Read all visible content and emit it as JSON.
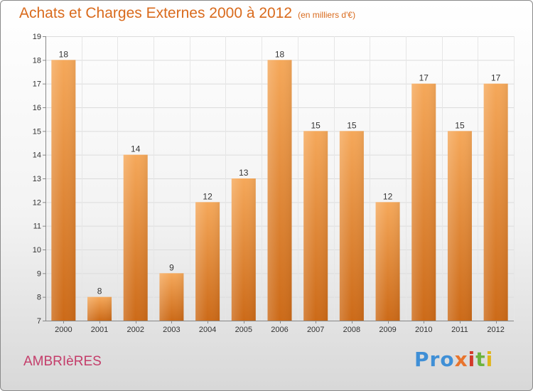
{
  "header": {
    "title": "Achats et Charges Externes 2000 à 2012",
    "subtitle": "(en milliers d'€)"
  },
  "footer": {
    "location": "AMBRIèRES",
    "logo_parts": [
      "Pro",
      "x",
      "i",
      "t",
      "i"
    ]
  },
  "colors": {
    "title": "#d96a1c",
    "location": "#c43d6a",
    "bar_top": "#f5a85a",
    "bar_bottom": "#cc6a18"
  },
  "chart_data": {
    "type": "bar",
    "title": "Achats et Charges Externes 2000 à 2012",
    "subtitle": "(en milliers d'€)",
    "categories": [
      "2000",
      "2001",
      "2002",
      "2003",
      "2004",
      "2005",
      "2006",
      "2007",
      "2008",
      "2009",
      "2010",
      "2011",
      "2012"
    ],
    "values": [
      18,
      8,
      14,
      9,
      12,
      13,
      18,
      15,
      15,
      12,
      17,
      15,
      17
    ],
    "ylim": [
      7,
      19
    ],
    "yticks": [
      7,
      8,
      9,
      10,
      11,
      12,
      13,
      14,
      15,
      16,
      17,
      18,
      19
    ],
    "grid": true,
    "xlabel": "",
    "ylabel": ""
  }
}
